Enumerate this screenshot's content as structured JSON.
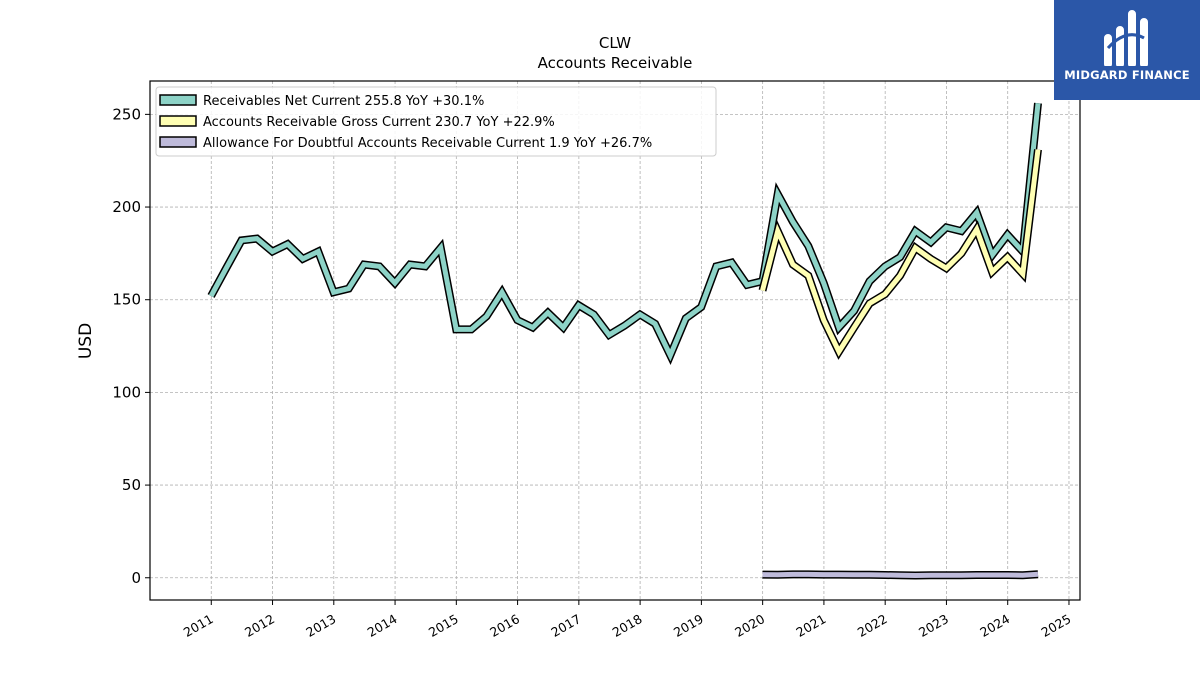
{
  "chart_data": {
    "type": "line",
    "title": "CLW",
    "subtitle": "Accounts Receivable",
    "ylabel": "USD",
    "xlabel": "",
    "ylim": [
      -12,
      268
    ],
    "xlim": [
      2010.0,
      2025.18
    ],
    "yticks": [
      0,
      50,
      100,
      150,
      200,
      250
    ],
    "xticks": [
      2011,
      2012,
      2013,
      2014,
      2015,
      2016,
      2017,
      2018,
      2019,
      2020,
      2021,
      2022,
      2023,
      2024,
      2025
    ],
    "grid": true,
    "legend_position": "top-left",
    "series": [
      {
        "name": "Receivables Net Current",
        "legend_label": "Receivables Net Current  255.8 YoY +30.1%",
        "color": "#8dd3c7",
        "points": [
          [
            "2010-12-31",
            152
          ],
          [
            "2011-03-31",
            167
          ],
          [
            "2011-06-30",
            182
          ],
          [
            "2011-09-30",
            183
          ],
          [
            "2011-12-31",
            176
          ],
          [
            "2012-03-31",
            180
          ],
          [
            "2012-06-30",
            172
          ],
          [
            "2012-09-30",
            176
          ],
          [
            "2012-12-31",
            154
          ],
          [
            "2013-03-31",
            156
          ],
          [
            "2013-06-30",
            169
          ],
          [
            "2013-09-30",
            168
          ],
          [
            "2013-12-31",
            159
          ],
          [
            "2014-03-31",
            169
          ],
          [
            "2014-06-30",
            168
          ],
          [
            "2014-09-30",
            178
          ],
          [
            "2014-12-31",
            134
          ],
          [
            "2015-03-31",
            134
          ],
          [
            "2015-06-30",
            141
          ],
          [
            "2015-09-30",
            154
          ],
          [
            "2015-12-31",
            139
          ],
          [
            "2016-03-31",
            135
          ],
          [
            "2016-06-30",
            143
          ],
          [
            "2016-09-30",
            135
          ],
          [
            "2016-12-31",
            147
          ],
          [
            "2017-03-31",
            142
          ],
          [
            "2017-06-30",
            131
          ],
          [
            "2017-09-30",
            136
          ],
          [
            "2017-12-31",
            142
          ],
          [
            "2018-03-31",
            137
          ],
          [
            "2018-06-30",
            120
          ],
          [
            "2018-09-30",
            140
          ],
          [
            "2018-12-31",
            146
          ],
          [
            "2019-03-31",
            168
          ],
          [
            "2019-06-30",
            170
          ],
          [
            "2019-09-30",
            158
          ],
          [
            "2019-12-31",
            160
          ],
          [
            "2020-03-31",
            207
          ],
          [
            "2020-06-30",
            192
          ],
          [
            "2020-09-30",
            179
          ],
          [
            "2020-12-31",
            159
          ],
          [
            "2021-03-31",
            135
          ],
          [
            "2021-06-30",
            144
          ],
          [
            "2021-09-30",
            160
          ],
          [
            "2021-12-31",
            168
          ],
          [
            "2022-03-31",
            173
          ],
          [
            "2022-06-30",
            187
          ],
          [
            "2022-09-30",
            181
          ],
          [
            "2022-12-31",
            189
          ],
          [
            "2023-03-31",
            187
          ],
          [
            "2023-06-30",
            197
          ],
          [
            "2023-09-30",
            174
          ],
          [
            "2023-12-31",
            185
          ],
          [
            "2024-03-31",
            176
          ],
          [
            "2024-06-30",
            256
          ]
        ]
      },
      {
        "name": "Accounts Receivable Gross Current",
        "legend_label": "Accounts Receivable Gross Current  230.7 YoY +22.9%",
        "color": "#ffffb3",
        "points": [
          [
            "2019-12-31",
            155
          ],
          [
            "2020-03-31",
            187
          ],
          [
            "2020-06-30",
            169
          ],
          [
            "2020-09-30",
            163
          ],
          [
            "2020-12-31",
            139
          ],
          [
            "2021-03-31",
            122
          ],
          [
            "2021-06-30",
            135
          ],
          [
            "2021-09-30",
            148
          ],
          [
            "2021-12-31",
            153
          ],
          [
            "2022-03-31",
            163
          ],
          [
            "2022-06-30",
            178
          ],
          [
            "2022-09-30",
            172
          ],
          [
            "2022-12-31",
            167
          ],
          [
            "2023-03-31",
            175
          ],
          [
            "2023-06-30",
            188
          ],
          [
            "2023-09-30",
            165
          ],
          [
            "2023-12-31",
            173
          ],
          [
            "2024-03-31",
            164
          ],
          [
            "2024-06-30",
            231
          ]
        ]
      },
      {
        "name": "Allowance For Doubtful Accounts Receivable Current",
        "legend_label": "Allowance For Doubtful Accounts Receivable Current  1.9 YoY +26.7%",
        "color": "#bebada",
        "points": [
          [
            "2019-12-31",
            1.7
          ],
          [
            "2020-03-31",
            1.6
          ],
          [
            "2020-06-30",
            1.8
          ],
          [
            "2020-09-30",
            1.8
          ],
          [
            "2020-12-31",
            1.7
          ],
          [
            "2021-03-31",
            1.7
          ],
          [
            "2021-06-30",
            1.6
          ],
          [
            "2021-09-30",
            1.6
          ],
          [
            "2021-12-31",
            1.5
          ],
          [
            "2022-03-31",
            1.4
          ],
          [
            "2022-06-30",
            1.2
          ],
          [
            "2022-09-30",
            1.4
          ],
          [
            "2022-12-31",
            1.4
          ],
          [
            "2023-03-31",
            1.3
          ],
          [
            "2023-06-30",
            1.5
          ],
          [
            "2023-09-30",
            1.5
          ],
          [
            "2023-12-31",
            1.5
          ],
          [
            "2024-03-31",
            1.3
          ],
          [
            "2024-06-30",
            1.9
          ]
        ]
      }
    ]
  },
  "logo": {
    "text": "MIDGARD FINANCE"
  }
}
